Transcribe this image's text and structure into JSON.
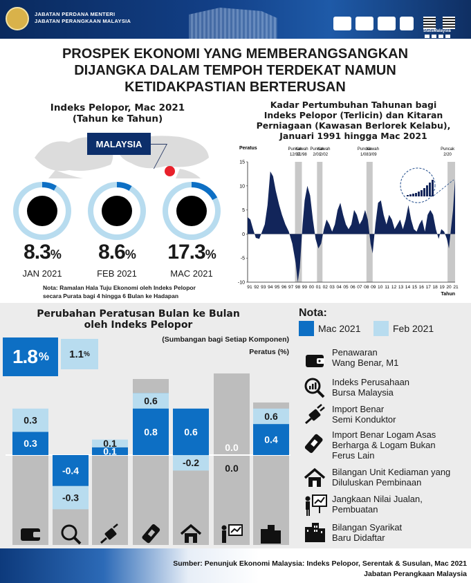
{
  "header": {
    "agency_line1": "JABATAN PERDANA MENTERI",
    "agency_line2": "JABATAN PERANGKAAN MALAYSIA",
    "stats_label": "StatsMalaysia"
  },
  "title": {
    "line1": "PROSPEK EKONOMI YANG MEMBERANGSANGKAN",
    "line2": "DIJANGKA DALAM TEMPOH TERDEKAT NAMUN",
    "line3": "KETIDAKPASTIAN BERTERUSAN"
  },
  "donut_section": {
    "title_line1": "Indeks Pelopor, Mac 2021",
    "title_line2": "(Tahun ke Tahun)",
    "country_label": "MALAYSIA",
    "note_line1": "Nota: Ramalan Hala Tuju Ekonomi oleh Indeks Pelopor",
    "note_line2": "secara Purata bagi 4 hingga 6 Bulan ke Hadapan"
  },
  "line_section": {
    "title_line1": "Kadar Pertumbuhan Tahunan bagi",
    "title_line2": "Indeks Pelopor (Terlicin) dan Kitaran",
    "title_line3": "Perniagaan (Kawasan Berlorek Kelabu),",
    "title_line4": "Januari 1991 hingga Mac 2021"
  },
  "bar_section": {
    "title_line1": "Perubahan Peratusan Bulan ke Bulan",
    "title_line2": "oleh Indeks Pelopor",
    "subtitle": "(Sumbangan bagi Setiap Komponen)",
    "unit": "Peratus (%)",
    "kpi_mar_value": "1.8",
    "kpi_feb_value": "1.1",
    "pct_sign": "%"
  },
  "nota": {
    "title": "Nota:",
    "legend": [
      {
        "label": "Mac 2021",
        "color": "#0d6fc4"
      },
      {
        "label": "Feb 2021",
        "color": "#b8dcef"
      }
    ],
    "items": [
      {
        "icon": "wallet-icon",
        "line1": "Penawaran",
        "line2": "Wang Benar, M1"
      },
      {
        "icon": "magnifier-chart-icon",
        "line1": "Indeks Perusahaan",
        "line2": "Bursa Malaysia"
      },
      {
        "icon": "semiconductor-plug-icon",
        "line1": "Import Benar",
        "line2": "Semi Konduktor"
      },
      {
        "icon": "metal-bar-icon",
        "line1": "Import Benar Logam Asas",
        "line2": "Berharga & Logam Bukan",
        "line3": "Ferus Lain"
      },
      {
        "icon": "house-icon",
        "line1": "Bilangan Unit Kediaman yang",
        "line2": "Diluluskan Pembinaan"
      },
      {
        "icon": "sales-presentation-icon",
        "line1": "Jangkaan Nilai Jualan,",
        "line2": "Pembuatan"
      },
      {
        "icon": "buildings-icon",
        "line1": "Bilangan Syarikat",
        "line2": "Baru Didaftar"
      }
    ]
  },
  "source": {
    "line1": "Sumber:  Penunjuk Ekonomi Malaysia: Indeks Pelopor, Serentak & Susulan, Mac 2021",
    "line2": "Jabatan Perangkaan Malaysia"
  },
  "colors": {
    "navy": "#0d2f6b",
    "blue": "#0d6fc4",
    "light_blue": "#b8dcef",
    "gray": "#bdbdbd",
    "red": "#e8212b",
    "line_fill": "#12255a"
  },
  "chart_data": [
    {
      "type": "pie",
      "title": "Indeks Pelopor, Mac 2021",
      "subtitle": "(Tahun ke Tahun)",
      "items": [
        {
          "label": "JAN 2021",
          "value": 8.3,
          "display": "8.3",
          "unit": "%"
        },
        {
          "label": "FEB 2021",
          "value": 8.6,
          "display": "8.6",
          "unit": "%"
        },
        {
          "label": "MAC 2021",
          "value": 17.3,
          "display": "17.3",
          "unit": "%"
        }
      ]
    },
    {
      "type": "area",
      "title": "Kadar Pertumbuhan Tahunan bagi Indeks Pelopor (Terlicin) dan Kitaran Perniagaan (Kawasan Berlorek Kelabu), Januari 1991 hingga Mac 2021",
      "ylabel": "Peratus",
      "xlabel": "Tahun",
      "ylim": [
        -10,
        15
      ],
      "yticks": [
        -10,
        -5,
        0,
        5,
        10,
        15
      ],
      "xticklabels": [
        "91",
        "92",
        "93",
        "94",
        "95",
        "96",
        "97",
        "98",
        "99",
        "00",
        "01",
        "02",
        "03",
        "04",
        "05",
        "06",
        "07",
        "08",
        "09",
        "10",
        "11",
        "12",
        "13",
        "14",
        "15",
        "16",
        "17",
        "18",
        "19",
        "20",
        "21"
      ],
      "x": [
        1991.0,
        1991.4,
        1991.8,
        1992.2,
        1992.7,
        1993.1,
        1993.5,
        1993.9,
        1994.3,
        1994.7,
        1995.1,
        1995.6,
        1996.0,
        1996.5,
        1997.0,
        1997.5,
        1998.0,
        1998.3,
        1998.6,
        1999.0,
        1999.3,
        1999.7,
        2000.1,
        2000.5,
        2000.9,
        2001.3,
        2001.7,
        2002.1,
        2002.5,
        2002.9,
        2003.3,
        2003.7,
        2004.1,
        2004.5,
        2004.9,
        2005.3,
        2005.7,
        2006.1,
        2006.5,
        2006.9,
        2007.3,
        2007.7,
        2008.1,
        2008.5,
        2008.9,
        2009.2,
        2009.6,
        2010.0,
        2010.4,
        2010.8,
        2011.2,
        2011.6,
        2012.0,
        2012.4,
        2012.8,
        2013.2,
        2013.6,
        2014.0,
        2014.4,
        2014.8,
        2015.2,
        2015.6,
        2016.0,
        2016.4,
        2016.8,
        2017.2,
        2017.6,
        2018.0,
        2018.4,
        2018.8,
        2019.2,
        2019.6,
        2020.0,
        2020.3,
        2020.6,
        2020.9,
        2021.2
      ],
      "y": [
        3.5,
        3,
        1,
        -0.8,
        -1,
        0.5,
        2,
        6,
        13,
        12,
        9,
        6,
        4,
        2,
        0.5,
        -2,
        -6,
        -10,
        -7,
        2,
        7,
        10,
        8,
        3,
        -1,
        -3,
        -2,
        1,
        3,
        2,
        0.5,
        2,
        5,
        6.5,
        4,
        2,
        1,
        2,
        5,
        4,
        2,
        3,
        5,
        3,
        -2,
        -4,
        2,
        6.5,
        7,
        4,
        2,
        4,
        3,
        1,
        2,
        3,
        1,
        3,
        6,
        3,
        1,
        0.5,
        2,
        3,
        0.5,
        4,
        5,
        4,
        1,
        -1,
        1,
        0.5,
        -1,
        -3,
        1,
        5,
        11.5
      ],
      "recessions": [
        [
          1997.9,
          1998.9
        ],
        [
          2001.1,
          2001.9
        ],
        [
          2008.3,
          2009.2
        ],
        [
          2020.1,
          2021.2
        ]
      ],
      "annotations": [
        {
          "label": "Puncak",
          "sub": "12/97",
          "x": 1997.9
        },
        {
          "label": "Kawah",
          "sub": "11/98",
          "x": 1998.9
        },
        {
          "label": "Puncak",
          "sub": "2/01",
          "x": 2001.1
        },
        {
          "label": "Kawah",
          "sub": "2/02",
          "x": 2002.1
        },
        {
          "label": "Puncak",
          "sub": "1/08",
          "x": 2008.0
        },
        {
          "label": "Kawah",
          "sub": "3/09",
          "x": 2009.2
        },
        {
          "label": "Puncak",
          "sub": "2/20",
          "x": 2020.1
        }
      ]
    },
    {
      "type": "bar",
      "title": "Perubahan Peratusan Bulan ke Bulan oleh Indeks Pelopor",
      "subtitle": "(Sumbangan bagi Setiap Komponen)",
      "ylabel": "Peratus (%)",
      "categories": [
        "Wang Benar, M1",
        "Bursa Malaysia",
        "Semi Konduktor",
        "Logam",
        "Kediaman",
        "Jualan Pembuatan",
        "Syarikat Baru"
      ],
      "series": [
        {
          "name": "Mac 2021",
          "values": [
            0.3,
            -0.4,
            0.1,
            0.8,
            0.6,
            0.0,
            0.4
          ],
          "labels": [
            "0.3",
            "-0.4",
            "0.1",
            "0.8",
            "0.6",
            "0.0",
            "0.4"
          ]
        },
        {
          "name": "Feb 2021",
          "values": [
            0.3,
            -0.3,
            0.1,
            0.6,
            -0.2,
            0.0,
            0.6
          ],
          "labels": [
            "0.3",
            "-0.3",
            "0.1",
            "0.6",
            "-0.2",
            "0.0",
            "0.6"
          ]
        }
      ]
    }
  ]
}
